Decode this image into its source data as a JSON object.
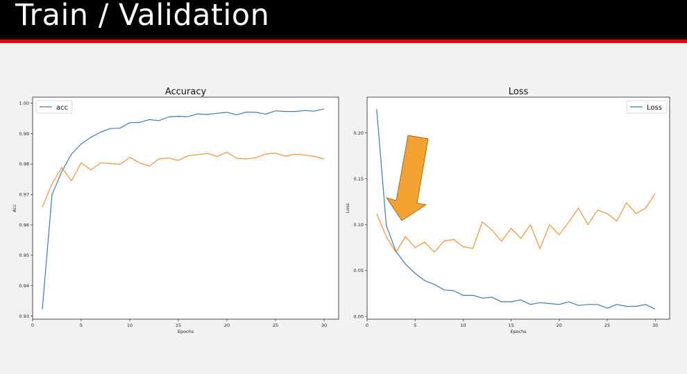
{
  "slide": {
    "title": "Train / Validation"
  },
  "colors": {
    "header_bg": "#000000",
    "accent_rule": "#e60000",
    "series_blue": "#3a7bb0",
    "series_orange": "#f0923a",
    "annotation_arrow": "#f4a232"
  },
  "annotation": {
    "icon": "arrow-down-left-icon"
  },
  "chart_data": [
    {
      "type": "line",
      "title": "Accuracy",
      "xlabel": "Epochs",
      "ylabel": "Acc",
      "xlim": [
        0,
        31.5
      ],
      "ylim": [
        0.929,
        1.002
      ],
      "xticks": [
        0,
        5,
        10,
        15,
        20,
        25,
        30
      ],
      "yticks": [
        0.93,
        0.94,
        0.95,
        0.96,
        0.97,
        0.98,
        0.99,
        1.0
      ],
      "ytick_labels": [
        "0.93",
        "0.94",
        "0.95",
        "0.96",
        "0.97",
        "0.98",
        "0.99",
        "1.00"
      ],
      "grid": false,
      "legend": "upper-left",
      "x": [
        1,
        2,
        3,
        4,
        5,
        6,
        7,
        8,
        9,
        10,
        11,
        12,
        13,
        14,
        15,
        16,
        17,
        18,
        19,
        20,
        21,
        22,
        23,
        24,
        25,
        26,
        27,
        28,
        29,
        30
      ],
      "series": [
        {
          "name": "acc",
          "color": "#3a7bb0",
          "values": [
            0.9323,
            0.97,
            0.9775,
            0.9833,
            0.9866,
            0.9888,
            0.9905,
            0.9917,
            0.9918,
            0.9936,
            0.9937,
            0.9946,
            0.9943,
            0.9955,
            0.9957,
            0.9956,
            0.9965,
            0.9963,
            0.9967,
            0.997,
            0.9962,
            0.9971,
            0.997,
            0.9964,
            0.9975,
            0.9973,
            0.9973,
            0.9976,
            0.9974,
            0.9981
          ]
        },
        {
          "color": "#f0923a",
          "values": [
            0.9658,
            0.9735,
            0.9789,
            0.9745,
            0.9804,
            0.9781,
            0.9804,
            0.9802,
            0.9799,
            0.9822,
            0.9804,
            0.9793,
            0.9817,
            0.982,
            0.9812,
            0.9827,
            0.9831,
            0.9835,
            0.9825,
            0.9839,
            0.9819,
            0.9817,
            0.9821,
            0.9833,
            0.9836,
            0.9826,
            0.9832,
            0.983,
            0.9825,
            0.9817
          ]
        }
      ]
    },
    {
      "type": "line",
      "title": "Loss",
      "xlabel": "Epochs",
      "ylabel": "Loss",
      "xlim": [
        0,
        31.5
      ],
      "ylim": [
        -0.003,
        0.239
      ],
      "xticks": [
        0,
        5,
        10,
        15,
        20,
        25,
        30
      ],
      "yticks": [
        0.0,
        0.05,
        0.1,
        0.15,
        0.2
      ],
      "ytick_labels": [
        "0.00",
        "0.05",
        "0.10",
        "0.15",
        "0.20"
      ],
      "grid": false,
      "legend": "upper-right",
      "x": [
        1,
        2,
        3,
        4,
        5,
        6,
        7,
        8,
        9,
        10,
        11,
        12,
        13,
        14,
        15,
        16,
        17,
        18,
        19,
        20,
        21,
        22,
        23,
        24,
        25,
        26,
        27,
        28,
        29,
        30
      ],
      "series": [
        {
          "name": "Loss",
          "color": "#3a7bb0",
          "values": [
            0.226,
            0.099,
            0.071,
            0.057,
            0.047,
            0.039,
            0.035,
            0.029,
            0.028,
            0.023,
            0.023,
            0.02,
            0.021,
            0.016,
            0.016,
            0.018,
            0.013,
            0.015,
            0.014,
            0.013,
            0.016,
            0.012,
            0.013,
            0.013,
            0.009,
            0.013,
            0.011,
            0.011,
            0.013,
            0.008
          ]
        },
        {
          "color": "#f0923a",
          "values": [
            0.112,
            0.087,
            0.07,
            0.087,
            0.075,
            0.081,
            0.07,
            0.082,
            0.084,
            0.076,
            0.074,
            0.103,
            0.094,
            0.082,
            0.096,
            0.085,
            0.1,
            0.074,
            0.1,
            0.089,
            0.103,
            0.118,
            0.1,
            0.116,
            0.112,
            0.104,
            0.124,
            0.112,
            0.118,
            0.134
          ]
        }
      ]
    }
  ]
}
